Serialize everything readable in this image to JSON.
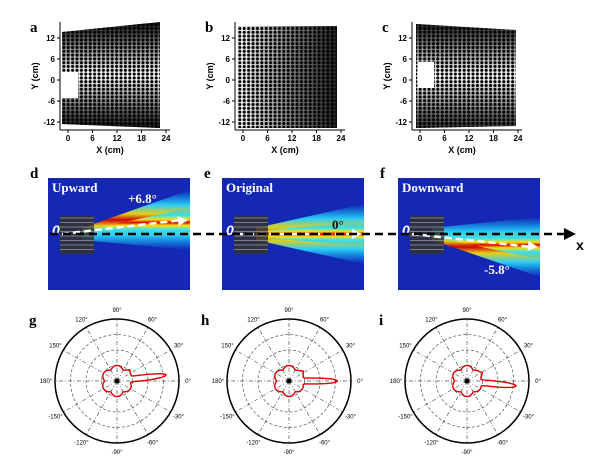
{
  "top_row": {
    "panels": [
      "a",
      "b",
      "c"
    ],
    "x_label": "X (cm)",
    "y_label": "Y (cm)",
    "x_ticks": [
      0,
      6,
      12,
      18,
      24
    ],
    "y_ticks": [
      12,
      6,
      0,
      -6,
      -12
    ]
  },
  "middle_row": {
    "panels": [
      "d",
      "e",
      "f"
    ],
    "titles": [
      "Upward",
      "Original",
      "Downward"
    ],
    "angles": [
      "+6.8°",
      "0°",
      "-5.8°"
    ],
    "origin_label": "0",
    "axis_label": "x"
  },
  "bottom_row": {
    "panels": [
      "g",
      "h",
      "i"
    ],
    "angle_labels": [
      "90°",
      "60°",
      "30°",
      "0°",
      "-30°",
      "-60°",
      "-90°",
      "-120°",
      "-150°",
      "180°",
      "150°",
      "120°"
    ]
  }
}
